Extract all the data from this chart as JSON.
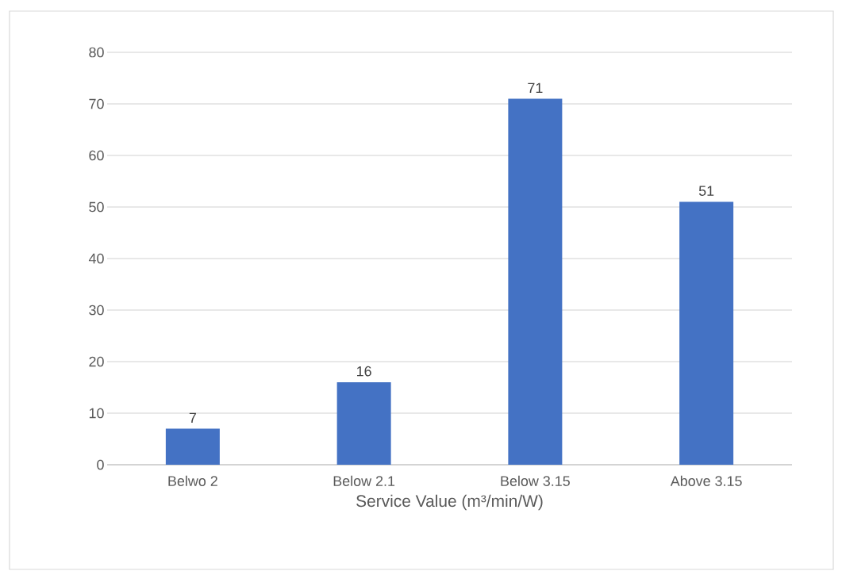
{
  "chart_data": {
    "type": "bar",
    "xlabel": "Service Value (m³/min/W)",
    "categories": [
      "Belwo 2",
      "Below 2.1",
      "Below 3.15",
      "Above 3.15"
    ],
    "values": [
      7,
      16,
      71,
      51
    ],
    "color": "#4472c4",
    "ylim": [
      0,
      80
    ],
    "yticks": [
      0,
      10,
      20,
      30,
      40,
      50,
      60,
      70,
      80
    ],
    "grid": "y",
    "data_labels": true
  }
}
